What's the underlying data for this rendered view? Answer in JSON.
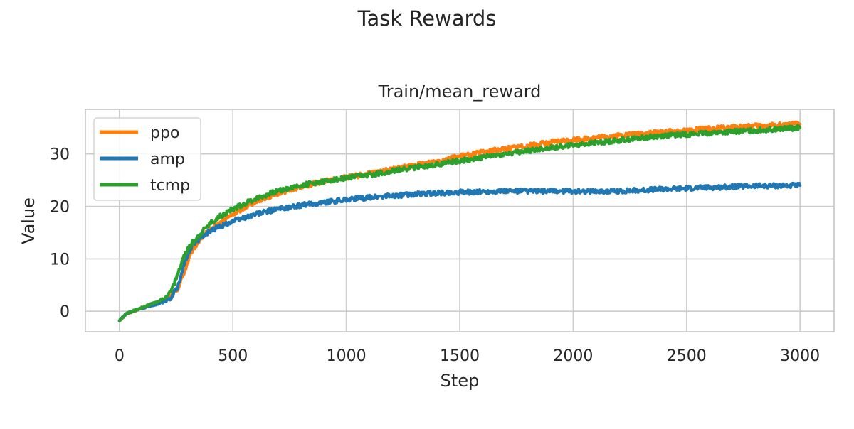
{
  "figure": {
    "suptitle": "Task Rewards"
  },
  "chart_data": {
    "type": "line",
    "title": "Train/mean_reward",
    "xlabel": "Step",
    "ylabel": "Value",
    "xlim": [
      -150,
      3150
    ],
    "ylim": [
      -3.9,
      38.5
    ],
    "xticks": [
      0,
      500,
      1000,
      1500,
      2000,
      2500,
      3000
    ],
    "yticks": [
      0,
      10,
      20,
      30
    ],
    "grid": true,
    "legend_position": "top-left",
    "series": [
      {
        "name": "ppo",
        "color": "#ff7f0e",
        "x": [
          0,
          30,
          80,
          150,
          200,
          230,
          260,
          290,
          320,
          360,
          400,
          450,
          500,
          600,
          700,
          800,
          900,
          1000,
          1100,
          1200,
          1300,
          1400,
          1500,
          1600,
          1700,
          1800,
          1900,
          2000,
          2200,
          2400,
          2600,
          2800,
          3000
        ],
        "y": [
          -1.8,
          -0.5,
          0.3,
          1.4,
          2.2,
          3.0,
          4.5,
          8.0,
          11.5,
          14.0,
          15.5,
          17.0,
          18.5,
          21.0,
          22.5,
          23.8,
          24.8,
          25.5,
          26.2,
          27.0,
          27.8,
          28.7,
          29.5,
          30.3,
          31.0,
          31.6,
          32.2,
          32.7,
          33.5,
          34.2,
          34.8,
          35.3,
          35.7
        ]
      },
      {
        "name": "amp",
        "color": "#1f77b4",
        "x": [
          0,
          30,
          80,
          150,
          200,
          230,
          260,
          290,
          320,
          360,
          400,
          450,
          500,
          600,
          700,
          800,
          900,
          1000,
          1100,
          1200,
          1300,
          1400,
          1500,
          1600,
          1700,
          1800,
          1900,
          2000,
          2200,
          2400,
          2600,
          2800,
          3000
        ],
        "y": [
          -1.8,
          -0.5,
          0.3,
          1.2,
          1.8,
          2.6,
          5.0,
          9.5,
          12.5,
          14.2,
          15.3,
          16.3,
          17.2,
          18.5,
          19.5,
          20.2,
          20.8,
          21.3,
          21.7,
          22.0,
          22.3,
          22.5,
          22.7,
          22.8,
          22.9,
          22.9,
          22.9,
          22.9,
          22.9,
          23.3,
          23.6,
          23.9,
          24.0
        ]
      },
      {
        "name": "tcmp",
        "color": "#2ca02c",
        "x": [
          0,
          30,
          80,
          150,
          200,
          230,
          260,
          290,
          320,
          360,
          400,
          450,
          500,
          600,
          700,
          800,
          900,
          1000,
          1100,
          1200,
          1300,
          1400,
          1500,
          1600,
          1700,
          1800,
          1900,
          2000,
          2200,
          2400,
          2600,
          2800,
          3000
        ],
        "y": [
          -1.8,
          -0.5,
          0.4,
          1.5,
          2.5,
          4.0,
          7.5,
          11.0,
          13.0,
          15.0,
          16.8,
          18.3,
          19.5,
          21.5,
          23.0,
          24.0,
          24.8,
          25.4,
          26.0,
          26.7,
          27.4,
          28.0,
          28.7,
          29.3,
          30.0,
          30.6,
          31.2,
          31.7,
          32.6,
          33.5,
          34.0,
          34.5,
          35.0
        ]
      }
    ]
  }
}
